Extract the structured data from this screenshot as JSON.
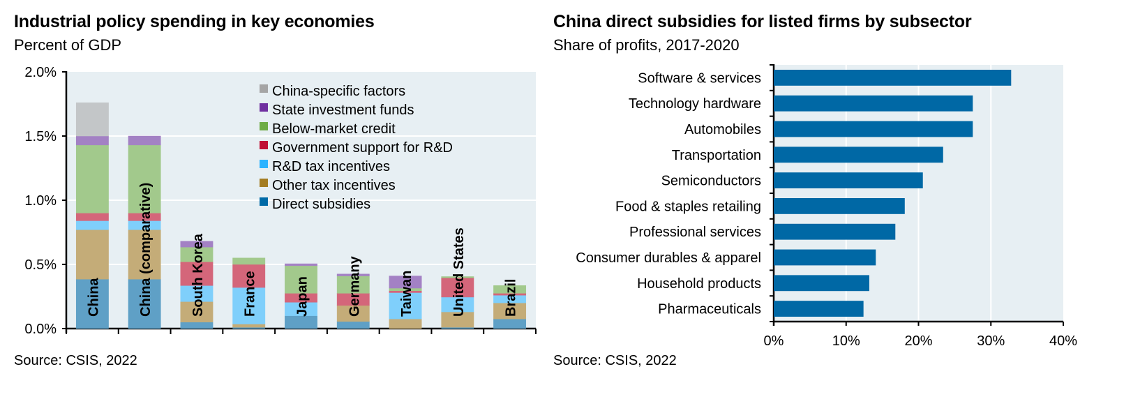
{
  "chart_data": [
    {
      "type": "bar",
      "stacked": true,
      "orientation": "vertical",
      "title": "Industrial policy spending in key economies",
      "subtitle": "Percent of GDP",
      "source": "Source: CSIS, 2022",
      "xlabel": "",
      "ylabel": "",
      "ylim": [
        0,
        2.0
      ],
      "yticks": [
        0,
        0.5,
        1.0,
        1.5,
        2.0
      ],
      "ytick_labels": [
        "0.0%",
        "0.5%",
        "1.0%",
        "1.5%",
        "2.0%"
      ],
      "grid": true,
      "legend_position": "top-right",
      "categories": [
        "China",
        "China (comparative)",
        "South Korea",
        "France",
        "Japan",
        "Germany",
        "Taiwan",
        "United States",
        "Brazil"
      ],
      "series": [
        {
          "name": "Direct subsidies",
          "color": "#006AA7",
          "fill": "#5FA0C6",
          "values": [
            0.385,
            0.385,
            0.05,
            0.01,
            0.1,
            0.055,
            0.0,
            0.01,
            0.075
          ]
        },
        {
          "name": "Other tax incentives",
          "color": "#A47D22",
          "fill": "#C4AC78",
          "values": [
            0.385,
            0.385,
            0.16,
            0.025,
            0.0,
            0.125,
            0.075,
            0.12,
            0.125
          ]
        },
        {
          "name": "R&D tax incentives",
          "color": "#2DB3FF",
          "fill": "#7FCFFB",
          "values": [
            0.07,
            0.07,
            0.125,
            0.285,
            0.105,
            0.0,
            0.205,
            0.115,
            0.06
          ]
        },
        {
          "name": "Government support for R&D",
          "color": "#C00F34",
          "fill": "#D4667A",
          "values": [
            0.06,
            0.06,
            0.185,
            0.18,
            0.07,
            0.095,
            0.015,
            0.15,
            0.015
          ]
        },
        {
          "name": "Below-market credit",
          "color": "#6FAC46",
          "fill": "#A2C98C",
          "values": [
            0.53,
            0.53,
            0.115,
            0.05,
            0.215,
            0.135,
            0.02,
            0.01,
            0.06
          ]
        },
        {
          "name": "State investment funds",
          "color": "#7030A0",
          "fill": "#A381C4",
          "values": [
            0.07,
            0.07,
            0.045,
            0.0,
            0.015,
            0.015,
            0.095,
            0.0,
            0.0
          ]
        },
        {
          "name": "China-specific factors",
          "color": "#A5A5A5",
          "fill": "#C3C6C8",
          "values": [
            0.26,
            0.0,
            0.0,
            0.0,
            0.0,
            0.0,
            0.0,
            0.0,
            0.0
          ]
        }
      ],
      "legend_order": [
        "China-specific factors",
        "State investment funds",
        "Below-market credit",
        "Government support for R&D",
        "R&D tax incentives",
        "Other tax incentives",
        "Direct subsidies"
      ]
    },
    {
      "type": "bar",
      "orientation": "horizontal",
      "title": "China direct subsidies for listed firms by subsector",
      "subtitle": "Share of profits, 2017-2020",
      "source": "Source: CSIS, 2022",
      "xlabel": "",
      "ylabel": "",
      "xlim": [
        0,
        40
      ],
      "xticks": [
        0,
        10,
        20,
        30,
        40
      ],
      "xtick_labels": [
        "0%",
        "10%",
        "20%",
        "30%",
        "40%"
      ],
      "grid": true,
      "color": "#0068A5",
      "categories": [
        "Software & services",
        "Technology hardware",
        "Automobiles",
        "Transportation",
        "Semiconductors",
        "Food & staples retailing",
        "Professional services",
        "Consumer durables & apparel",
        "Household products",
        "Pharmaceuticals"
      ],
      "values": [
        32.8,
        27.5,
        27.5,
        23.4,
        20.6,
        18.1,
        16.8,
        14.1,
        13.2,
        12.4
      ]
    }
  ],
  "colors": {
    "plot_bg": "#E7EFF3",
    "grid": "#FFFFFF",
    "axis": "#000000"
  }
}
